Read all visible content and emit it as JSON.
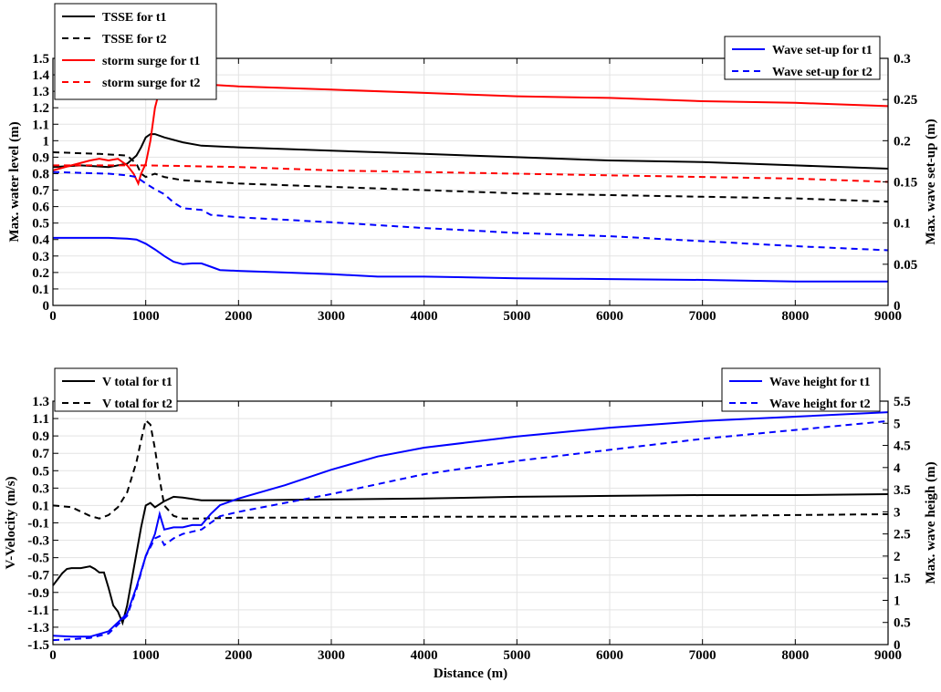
{
  "chart_data": [
    {
      "type": "line",
      "xlabel": "",
      "ylabel_left": "Max. water level (m)",
      "ylabel_right": "Max. wave set-up (m)",
      "xlim": [
        0,
        9000
      ],
      "ylim_left": [
        0,
        1.5
      ],
      "ylim_right": [
        0,
        0.3
      ],
      "grid": true,
      "x_ticks": [
        "0",
        "1000",
        "2000",
        "3000",
        "4000",
        "5000",
        "6000",
        "7000",
        "8000",
        "9000"
      ],
      "yleft_ticks": [
        "0",
        "0.1",
        "0.2",
        "0.3",
        "0.4",
        "0.5",
        "0.6",
        "0.7",
        "0.8",
        "0.9",
        "1",
        "1.1",
        "1.2",
        "1.3",
        "1.4",
        "1.5"
      ],
      "yright_ticks": [
        "0",
        "0.05",
        "0.1",
        "0.15",
        "0.2",
        "0.25",
        "0.3"
      ],
      "legend_left": {
        "placement": "top-left",
        "entries": [
          "TSSE for t1",
          "TSSE for t2",
          "storm surge for t1",
          "storm surge for t2"
        ]
      },
      "legend_right": {
        "placement": "top-right",
        "entries": [
          "Wave set-up for t1",
          "Wave set-up for t2"
        ]
      },
      "series": [
        {
          "name": "TSSE for t1",
          "axis": "left",
          "color": "#000000",
          "dash": false,
          "x": [
            0,
            300,
            600,
            800,
            900,
            950,
            1000,
            1050,
            1100,
            1200,
            1400,
            1600,
            2000,
            3000,
            4000,
            5000,
            6000,
            7000,
            8000,
            9000
          ],
          "y": [
            0.84,
            0.85,
            0.84,
            0.86,
            0.91,
            0.96,
            1.02,
            1.04,
            1.04,
            1.02,
            0.99,
            0.97,
            0.96,
            0.94,
            0.92,
            0.9,
            0.88,
            0.87,
            0.85,
            0.83
          ]
        },
        {
          "name": "TSSE for t2",
          "axis": "left",
          "color": "#000000",
          "dash": true,
          "x": [
            0,
            500,
            800,
            900,
            950,
            1000,
            1100,
            1200,
            1400,
            2000,
            3000,
            4000,
            5000,
            6000,
            7000,
            8000,
            9000
          ],
          "y": [
            0.93,
            0.92,
            0.91,
            0.86,
            0.8,
            0.78,
            0.8,
            0.78,
            0.76,
            0.74,
            0.72,
            0.7,
            0.68,
            0.67,
            0.66,
            0.65,
            0.63
          ]
        },
        {
          "name": "storm surge for t1",
          "axis": "left",
          "color": "#ff0000",
          "dash": false,
          "x": [
            0,
            200,
            400,
            500,
            600,
            700,
            800,
            870,
            920,
            950,
            1000,
            1050,
            1100,
            1150,
            1200,
            1250,
            1300,
            1400,
            2000,
            3000,
            4000,
            5000,
            6000,
            7000,
            8000,
            9000
          ],
          "y": [
            0.82,
            0.85,
            0.88,
            0.89,
            0.88,
            0.89,
            0.85,
            0.8,
            0.74,
            0.8,
            0.86,
            1.0,
            1.2,
            1.31,
            1.33,
            1.34,
            1.35,
            1.35,
            1.33,
            1.31,
            1.29,
            1.27,
            1.26,
            1.24,
            1.23,
            1.21
          ]
        },
        {
          "name": "storm surge for t2",
          "axis": "left",
          "color": "#ff0000",
          "dash": true,
          "x": [
            0,
            1000,
            2000,
            3000,
            4000,
            5000,
            6000,
            7000,
            8000,
            9000
          ],
          "y": [
            0.85,
            0.85,
            0.84,
            0.82,
            0.81,
            0.8,
            0.79,
            0.78,
            0.77,
            0.75
          ]
        },
        {
          "name": "Wave set-up for t1",
          "axis": "right",
          "color": "#0000ff",
          "dash": false,
          "x": [
            0,
            300,
            600,
            800,
            900,
            1000,
            1100,
            1200,
            1300,
            1400,
            1500,
            1600,
            1700,
            1800,
            2000,
            2500,
            3000,
            3500,
            4000,
            5000,
            6000,
            7000,
            8000,
            9000
          ],
          "y": [
            0.082,
            0.082,
            0.082,
            0.081,
            0.08,
            0.075,
            0.068,
            0.06,
            0.053,
            0.05,
            0.051,
            0.051,
            0.047,
            0.043,
            0.042,
            0.04,
            0.038,
            0.035,
            0.035,
            0.033,
            0.032,
            0.031,
            0.029,
            0.029
          ]
        },
        {
          "name": "Wave set-up for t2",
          "axis": "right",
          "color": "#0000ff",
          "dash": true,
          "x": [
            0,
            300,
            600,
            800,
            900,
            1000,
            1100,
            1200,
            1300,
            1400,
            1500,
            1600,
            1700,
            1800,
            2000,
            3000,
            4000,
            5000,
            6000,
            7000,
            8000,
            9000
          ],
          "y": [
            0.162,
            0.161,
            0.16,
            0.158,
            0.156,
            0.148,
            0.141,
            0.135,
            0.125,
            0.118,
            0.117,
            0.116,
            0.11,
            0.109,
            0.107,
            0.101,
            0.094,
            0.088,
            0.084,
            0.078,
            0.072,
            0.067
          ]
        }
      ]
    },
    {
      "type": "line",
      "xlabel": "Distance (m)",
      "ylabel_left": "V-Velocity (m/s)",
      "ylabel_right": "Max. wave heigh (m)",
      "xlim": [
        0,
        9000
      ],
      "ylim_left": [
        -1.5,
        1.3
      ],
      "ylim_right": [
        0,
        5.5
      ],
      "grid": true,
      "x_ticks": [
        "0",
        "1000",
        "2000",
        "3000",
        "4000",
        "5000",
        "6000",
        "7000",
        "8000",
        "9000"
      ],
      "yleft_ticks": [
        "-1.5",
        "-1.3",
        "-1.1",
        "-0.9",
        "-0.7",
        "-0.5",
        "-0.3",
        "-0.1",
        "0.1",
        "0.3",
        "0.5",
        "0.7",
        "0.9",
        "1.1",
        "1.3"
      ],
      "yright_ticks": [
        "0",
        "0.5",
        "1",
        "1.5",
        "2",
        "2.5",
        "3",
        "3.5",
        "4",
        "4.5",
        "5",
        "5.5"
      ],
      "legend_left": {
        "placement": "top-left",
        "entries": [
          "V total for t1",
          "V total for t2"
        ]
      },
      "legend_right": {
        "placement": "top-right",
        "entries": [
          "Wave height for t1",
          "Wave height for t2"
        ]
      },
      "series": [
        {
          "name": "V total for t1",
          "axis": "left",
          "color": "#000000",
          "dash": false,
          "x": [
            0,
            100,
            150,
            200,
            300,
            400,
            450,
            500,
            550,
            600,
            650,
            700,
            750,
            800,
            850,
            900,
            950,
            1000,
            1050,
            1100,
            1200,
            1300,
            1400,
            1600,
            2000,
            3000,
            4000,
            5000,
            6000,
            7000,
            8000,
            9000
          ],
          "y": [
            -0.82,
            -0.68,
            -0.63,
            -0.62,
            -0.62,
            -0.6,
            -0.63,
            -0.67,
            -0.67,
            -0.85,
            -1.05,
            -1.12,
            -1.25,
            -1.05,
            -0.75,
            -0.45,
            -0.15,
            0.1,
            0.13,
            0.08,
            0.15,
            0.2,
            0.19,
            0.16,
            0.16,
            0.17,
            0.18,
            0.2,
            0.21,
            0.22,
            0.22,
            0.23
          ]
        },
        {
          "name": "V total for t2",
          "axis": "left",
          "color": "#000000",
          "dash": true,
          "x": [
            0,
            200,
            400,
            500,
            600,
            700,
            800,
            900,
            950,
            1000,
            1050,
            1100,
            1150,
            1200,
            1300,
            1400,
            1600,
            2000,
            3000,
            4000,
            5000,
            6000,
            7000,
            8000,
            9000
          ],
          "y": [
            0.1,
            0.08,
            -0.02,
            -0.05,
            -0.01,
            0.08,
            0.25,
            0.6,
            0.85,
            1.08,
            1.03,
            0.75,
            0.4,
            0.1,
            -0.02,
            -0.05,
            -0.05,
            -0.04,
            -0.04,
            -0.03,
            -0.03,
            -0.02,
            -0.02,
            -0.01,
            0.0
          ]
        },
        {
          "name": "Wave height for t1",
          "axis": "right",
          "color": "#0000ff",
          "dash": false,
          "x": [
            0,
            200,
            400,
            600,
            800,
            900,
            1000,
            1050,
            1100,
            1150,
            1200,
            1300,
            1400,
            1500,
            1600,
            1700,
            1800,
            2000,
            2500,
            3000,
            3500,
            4000,
            5000,
            6000,
            7000,
            8000,
            9000
          ],
          "y": [
            0.2,
            0.18,
            0.18,
            0.3,
            0.7,
            1.3,
            2.0,
            2.25,
            2.5,
            2.95,
            2.6,
            2.65,
            2.65,
            2.7,
            2.7,
            2.95,
            3.15,
            3.3,
            3.6,
            3.95,
            4.25,
            4.45,
            4.7,
            4.9,
            5.05,
            5.15,
            5.25
          ]
        },
        {
          "name": "Wave height for t2",
          "axis": "right",
          "color": "#0000ff",
          "dash": true,
          "x": [
            0,
            200,
            400,
            600,
            800,
            900,
            1000,
            1100,
            1150,
            1200,
            1300,
            1400,
            1500,
            1600,
            1800,
            2000,
            3000,
            4000,
            5000,
            6000,
            7000,
            8000,
            9000
          ],
          "y": [
            0.1,
            0.12,
            0.15,
            0.25,
            0.65,
            1.25,
            2.0,
            2.4,
            2.45,
            2.25,
            2.4,
            2.5,
            2.55,
            2.6,
            2.9,
            3.0,
            3.4,
            3.85,
            4.15,
            4.4,
            4.65,
            4.85,
            5.05
          ]
        }
      ]
    }
  ]
}
